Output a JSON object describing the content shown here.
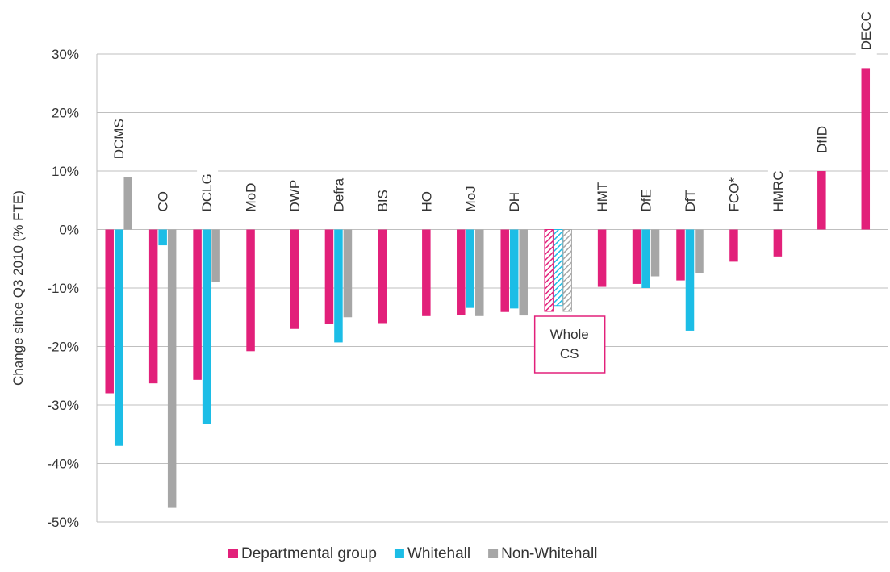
{
  "chart_data": {
    "type": "bar",
    "y_label": "Change since Q3 2010 (% FTE)",
    "categories": [
      "DCMS",
      "CO",
      "DCLG",
      "MoD",
      "DWP",
      "Defra",
      "BIS",
      "HO",
      "MoJ",
      "DH",
      "Whole CS",
      "HMT",
      "DfE",
      "DfT",
      "FCO*",
      "HMRC",
      "DfID",
      "DECC"
    ],
    "series": [
      {
        "name": "Departmental group",
        "color": "#e2207a",
        "values": [
          -28,
          -26.3,
          -25.7,
          -20.8,
          -17,
          -16.2,
          -16,
          -14.8,
          -14.6,
          -14.1,
          -14,
          -9.8,
          -9.3,
          -8.7,
          -5.5,
          -4.6,
          10,
          27.6
        ]
      },
      {
        "name": "Whitehall",
        "color": "#1cbde6",
        "values": [
          -37,
          -2.7,
          -33.3,
          null,
          null,
          -19.3,
          null,
          null,
          -13.4,
          -13.5,
          -13,
          null,
          -10,
          -17.3,
          null,
          null,
          null,
          null
        ]
      },
      {
        "name": "Non-Whitehall",
        "color": "#a6a6a6",
        "values": [
          9,
          -47.6,
          -9,
          null,
          null,
          -15,
          null,
          null,
          -14.8,
          -14.7,
          -14,
          null,
          -8,
          -7.5,
          null,
          null,
          null,
          null
        ]
      }
    ],
    "highlight_category": "Whole CS",
    "ylim": [
      -50,
      30
    ],
    "yticks": [
      {
        "value": -50,
        "label": "-50%"
      },
      {
        "value": -40,
        "label": "-40%"
      },
      {
        "value": -30,
        "label": "-30%"
      },
      {
        "value": -20,
        "label": "-20%"
      },
      {
        "value": -10,
        "label": "-10%"
      },
      {
        "value": 0,
        "label": "0%"
      },
      {
        "value": 10,
        "label": "10%"
      },
      {
        "value": 20,
        "label": "20%"
      },
      {
        "value": 30,
        "label": "30%"
      }
    ],
    "grid": true,
    "legend": "bottom"
  }
}
